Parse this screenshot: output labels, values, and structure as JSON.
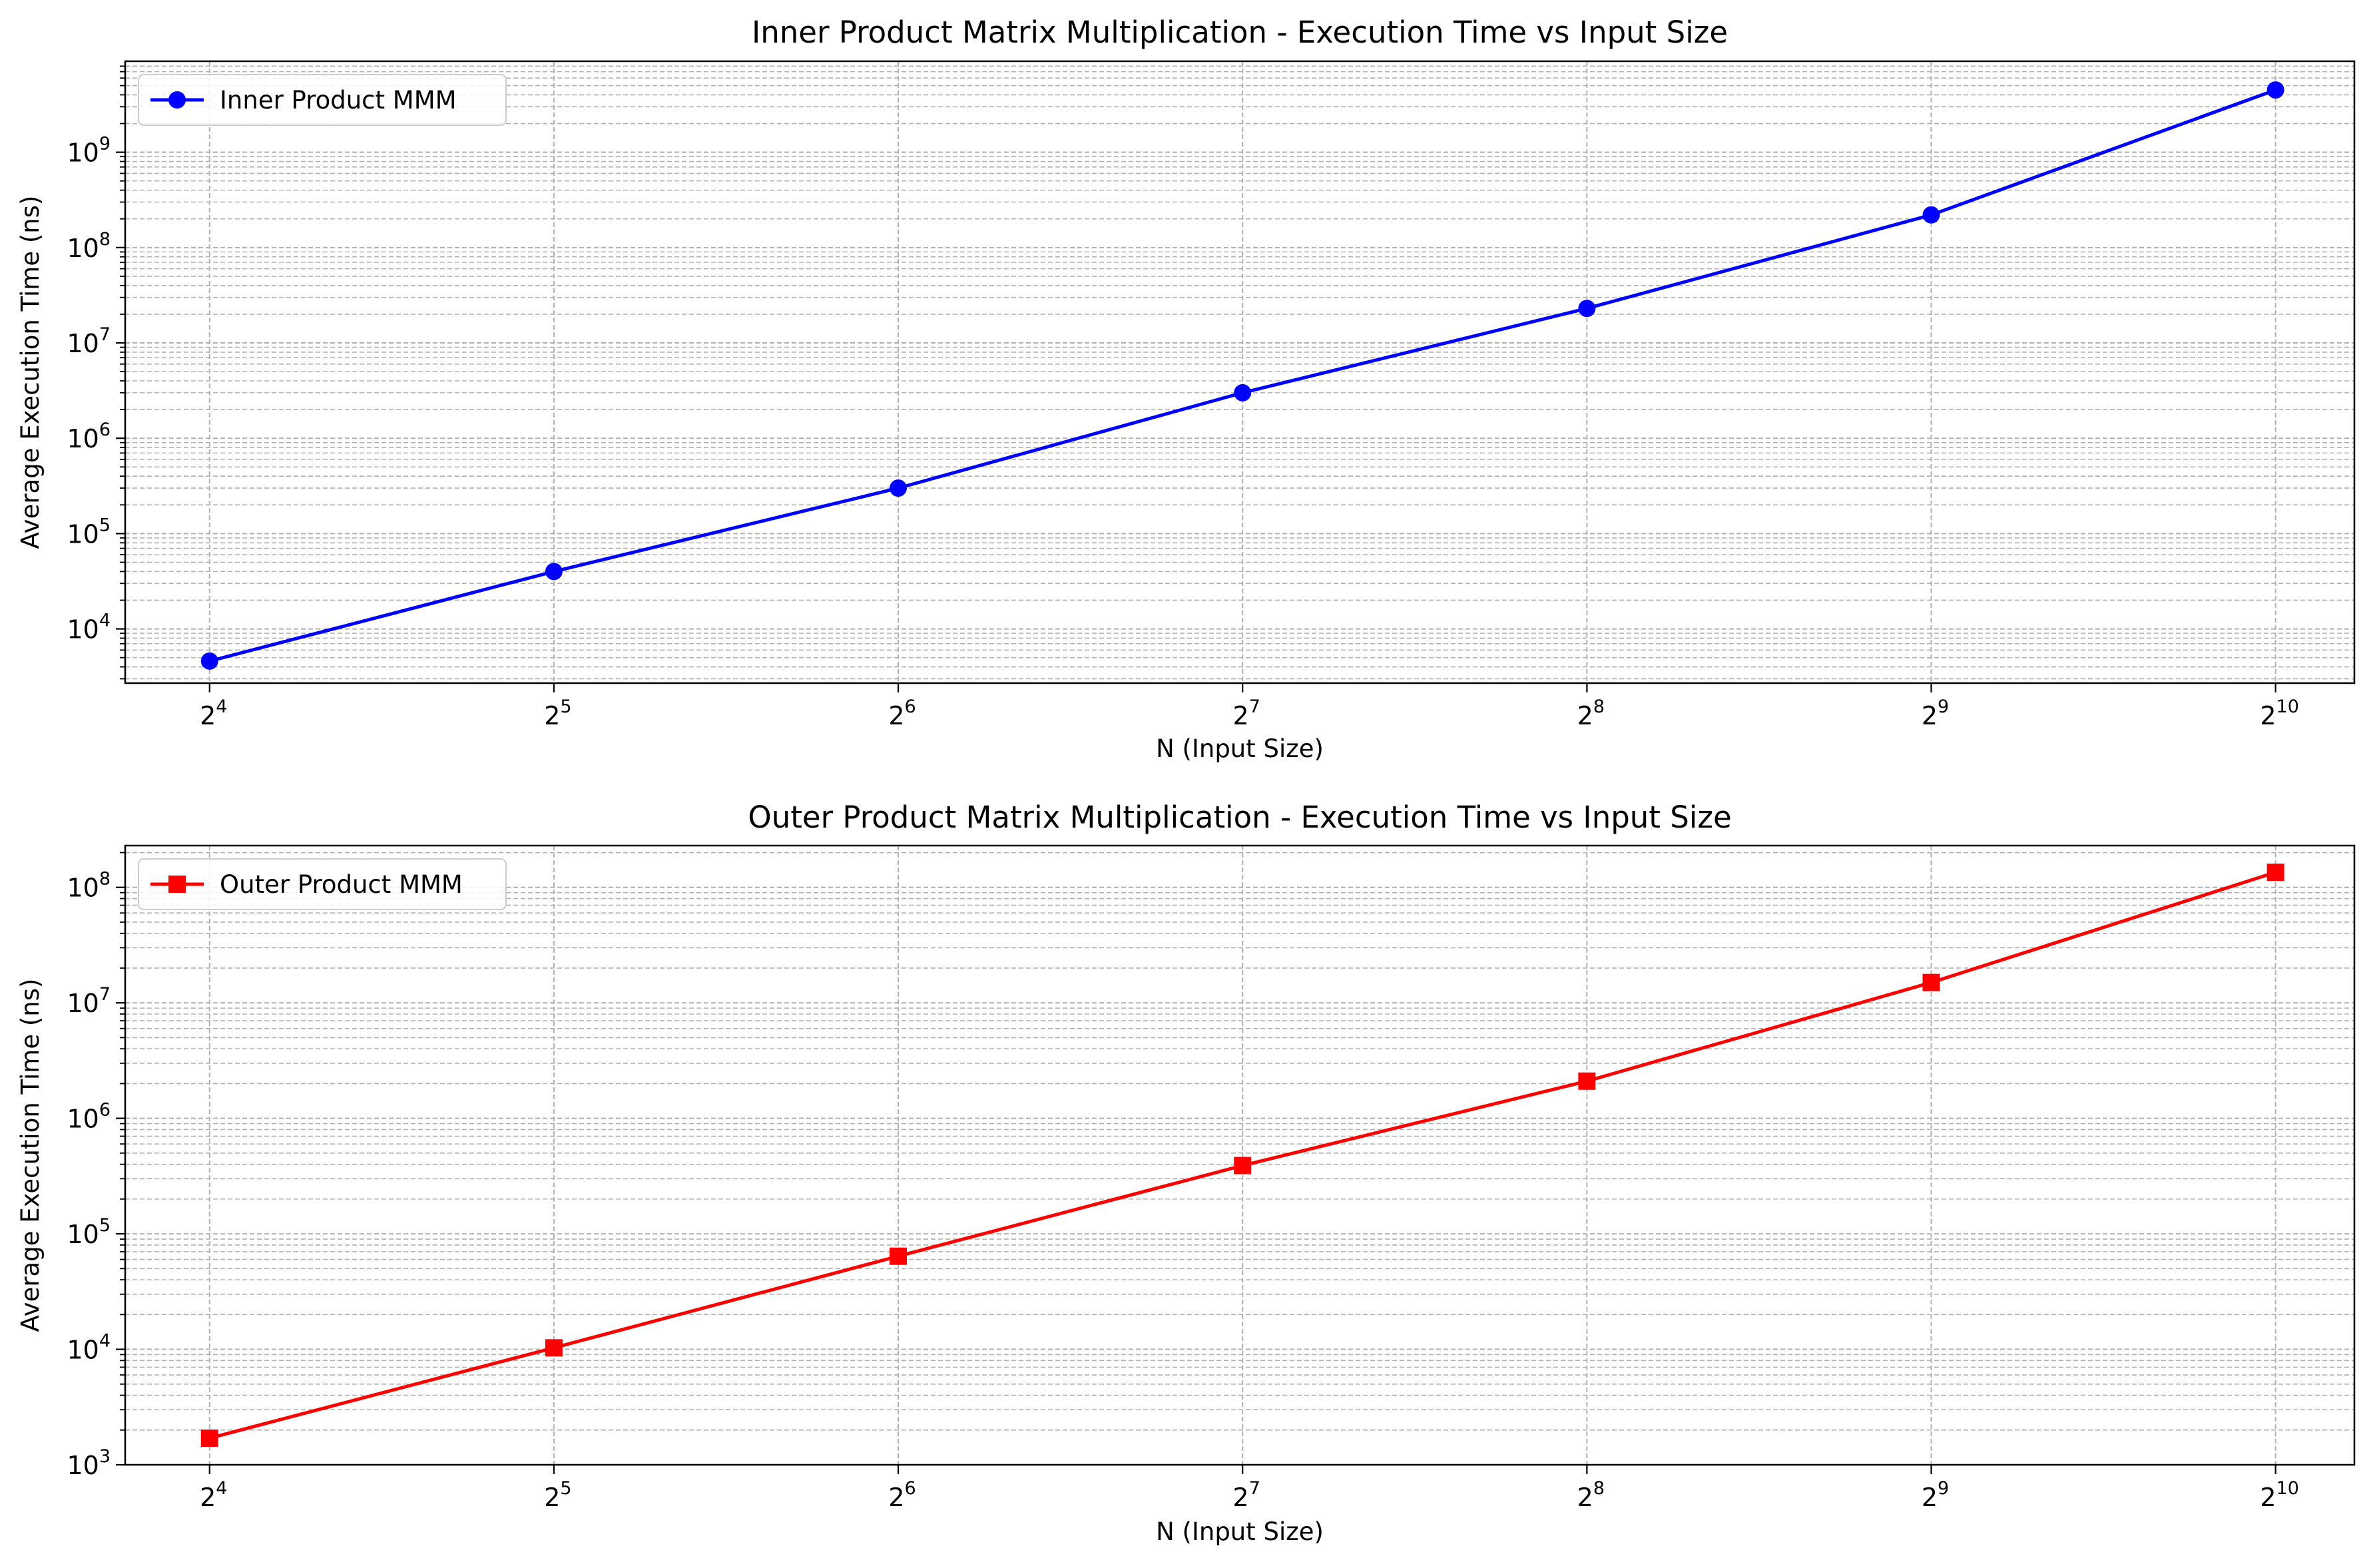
{
  "chart_data": [
    {
      "type": "line",
      "title": "Inner Product Matrix Multiplication - Execution Time vs Input Size",
      "xlabel": "N (Input Size)",
      "ylabel": "Average Execution Time (ns)",
      "x_scale": "log2",
      "y_scale": "log10",
      "x_ticks": [
        {
          "base": "2",
          "exp": "4",
          "value": 16
        },
        {
          "base": "2",
          "exp": "5",
          "value": 32
        },
        {
          "base": "2",
          "exp": "6",
          "value": 64
        },
        {
          "base": "2",
          "exp": "7",
          "value": 128
        },
        {
          "base": "2",
          "exp": "8",
          "value": 256
        },
        {
          "base": "2",
          "exp": "9",
          "value": 512
        },
        {
          "base": "2",
          "exp": "10",
          "value": 1024
        }
      ],
      "y_ticks": [
        {
          "base": "10",
          "exp": "4",
          "value": 10000
        },
        {
          "base": "10",
          "exp": "5",
          "value": 100000
        },
        {
          "base": "10",
          "exp": "6",
          "value": 1000000
        },
        {
          "base": "10",
          "exp": "7",
          "value": 10000000
        },
        {
          "base": "10",
          "exp": "8",
          "value": 100000000
        },
        {
          "base": "10",
          "exp": "9",
          "value": 1000000000
        }
      ],
      "xlim": [
        13.5,
        1200
      ],
      "ylim": [
        2700,
        9000000000
      ],
      "grid": true,
      "legend_position": "upper-left",
      "series": [
        {
          "name": "Inner Product MMM",
          "color": "#0000ff",
          "marker": "circle",
          "x": [
            16,
            32,
            64,
            128,
            256,
            512,
            1024
          ],
          "y": [
            4600,
            40000,
            300000,
            3000000,
            23000000,
            220000000,
            4500000000
          ]
        }
      ]
    },
    {
      "type": "line",
      "title": "Outer Product Matrix Multiplication - Execution Time vs Input Size",
      "xlabel": "N (Input Size)",
      "ylabel": "Average Execution Time (ns)",
      "x_scale": "log2",
      "y_scale": "log10",
      "x_ticks": [
        {
          "base": "2",
          "exp": "4",
          "value": 16
        },
        {
          "base": "2",
          "exp": "5",
          "value": 32
        },
        {
          "base": "2",
          "exp": "6",
          "value": 64
        },
        {
          "base": "2",
          "exp": "7",
          "value": 128
        },
        {
          "base": "2",
          "exp": "8",
          "value": 256
        },
        {
          "base": "2",
          "exp": "9",
          "value": 512
        },
        {
          "base": "2",
          "exp": "10",
          "value": 1024
        }
      ],
      "y_ticks": [
        {
          "base": "10",
          "exp": "3",
          "value": 1000
        },
        {
          "base": "10",
          "exp": "4",
          "value": 10000
        },
        {
          "base": "10",
          "exp": "5",
          "value": 100000
        },
        {
          "base": "10",
          "exp": "6",
          "value": 1000000
        },
        {
          "base": "10",
          "exp": "7",
          "value": 10000000
        },
        {
          "base": "10",
          "exp": "8",
          "value": 100000000
        }
      ],
      "xlim": [
        13.5,
        1200
      ],
      "ylim": [
        1000,
        230000000
      ],
      "grid": true,
      "legend_position": "upper-left",
      "series": [
        {
          "name": "Outer Product MMM",
          "color": "#ff0000",
          "marker": "square",
          "x": [
            16,
            32,
            64,
            128,
            256,
            512,
            1024
          ],
          "y": [
            1700,
            10300,
            64000,
            390000,
            2100000,
            15000000,
            135000000
          ]
        }
      ]
    }
  ]
}
